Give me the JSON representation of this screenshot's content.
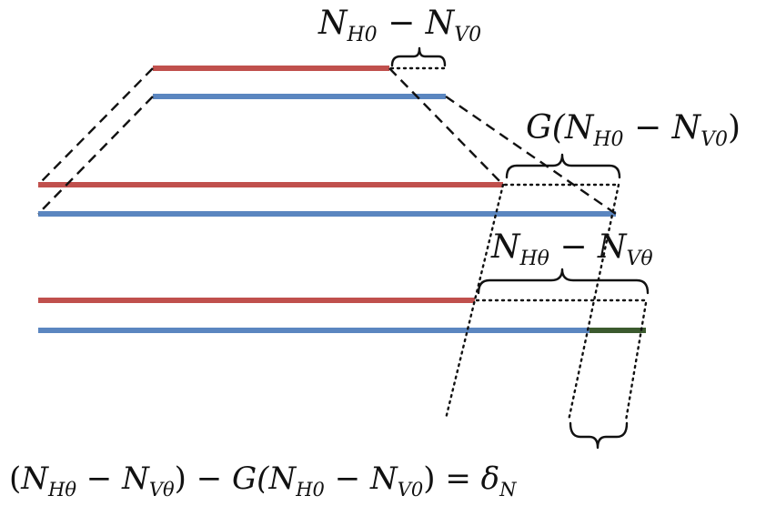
{
  "labels": {
    "top": {
      "N1": "N",
      "s1": "H0",
      "op": " − ",
      "N2": "N",
      "s2": "V0"
    },
    "middle": {
      "G": "G(",
      "N1": "N",
      "s1": "H0",
      "op": " − ",
      "N2": "N",
      "s2": "V0",
      "close": ")"
    },
    "lower": {
      "N1": "N",
      "s1": "Hθ",
      "op": " − ",
      "N2": "N",
      "s2": "Vθ"
    },
    "equation": {
      "open1": "(",
      "N1": "N",
      "s1": "Hθ",
      "op1": " − ",
      "N2": "N",
      "s2": "Vθ",
      "close1": ")",
      "op2": " − G(",
      "N3": "N",
      "s3": "H0",
      "op3": " − ",
      "N4": "N",
      "s4": "V0",
      "close2": ")",
      "eq": " = ",
      "delta": "δ",
      "s5": "N"
    }
  },
  "colors": {
    "H_line": "#c0504d",
    "V_line": "#5b86c0",
    "difference_segment": "#3b5a2e"
  }
}
